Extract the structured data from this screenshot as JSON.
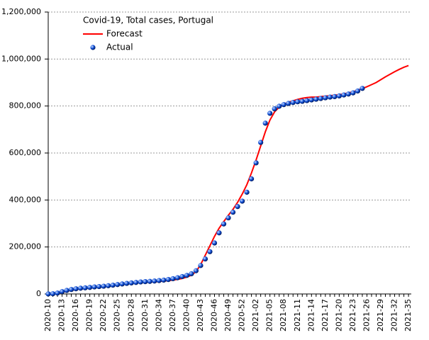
{
  "chart_data": {
    "type": "line",
    "title": "Covid-19, Total cases, Portugal",
    "categories": [
      "2020-10",
      null,
      null,
      "2020-13",
      null,
      null,
      "2020-16",
      null,
      null,
      "2020-19",
      null,
      null,
      "2020-22",
      null,
      null,
      "2020-25",
      null,
      null,
      "2020-28",
      null,
      null,
      "2020-31",
      null,
      null,
      "2020-34",
      null,
      null,
      "2020-37",
      null,
      null,
      "2020-40",
      null,
      null,
      "2020-43",
      null,
      null,
      "2020-46",
      null,
      null,
      "2020-49",
      null,
      null,
      "2020-52",
      null,
      null,
      "2021-02",
      null,
      null,
      "2021-05",
      null,
      null,
      "2021-08",
      null,
      null,
      "2021-11",
      null,
      null,
      "2021-14",
      null,
      null,
      "2021-17",
      null,
      null,
      "2021-20",
      null,
      null,
      "2021-23",
      null,
      null,
      "2021-26",
      null,
      null,
      "2021-29",
      null,
      null,
      "2021-32",
      null,
      null,
      "2021-35"
    ],
    "series": [
      {
        "name": "Forecast",
        "color": "#ff0000",
        "mark": "line",
        "values": [
          0,
          2000,
          5000,
          8000,
          12000,
          16000,
          19000,
          22000,
          24000,
          26000,
          28000,
          30000,
          32000,
          34000,
          37000,
          40000,
          43000,
          45000,
          47000,
          48000,
          49000,
          50000,
          51000,
          52000,
          53000,
          55000,
          57000,
          59000,
          62000,
          66000,
          72000,
          80000,
          95000,
          125000,
          165000,
          205000,
          245000,
          280000,
          308000,
          335000,
          360000,
          390000,
          425000,
          465000,
          515000,
          570000,
          630000,
          690000,
          740000,
          775000,
          795000,
          808000,
          816000,
          822000,
          828000,
          833000,
          836000,
          838000,
          838000,
          840000,
          842000,
          844000,
          846000,
          848000,
          852000,
          856000,
          861000,
          867000,
          874000,
          882000,
          891000,
          900000,
          912000,
          924000,
          935000,
          946000,
          956000,
          965000,
          972000
        ]
      },
      {
        "name": "Actual",
        "color": "#1050d8",
        "mark": "marker",
        "values": [
          100,
          1000,
          4000,
          10000,
          15000,
          19000,
          22000,
          24500,
          26000,
          28000,
          30000,
          31500,
          33000,
          35000,
          37500,
          40000,
          42500,
          45000,
          47000,
          49000,
          51000,
          52500,
          53500,
          55000,
          57000,
          59000,
          61500,
          65000,
          69000,
          74000,
          79000,
          86000,
          99000,
          121000,
          149000,
          180000,
          217000,
          260000,
          298000,
          324000,
          348000,
          372000,
          395000,
          433000,
          490000,
          558000,
          645000,
          727000,
          769000,
          788000,
          799000,
          806000,
          811000,
          815000,
          818000,
          820000,
          823000,
          826000,
          829000,
          832000,
          835000,
          838000,
          840000,
          843000,
          847000,
          851000,
          856000,
          864000,
          875000,
          null,
          null,
          null,
          null,
          null,
          null,
          null,
          null,
          null,
          null
        ]
      }
    ],
    "ylim": [
      0,
      1200000
    ],
    "yticks": [
      0,
      {
        "value": 200000,
        "label": "200,000"
      },
      {
        "value": 400000,
        "label": "400,000"
      },
      {
        "value": 600000,
        "label": "600,000"
      },
      {
        "value": 800000,
        "label": "800,000"
      },
      {
        "value": 1000000,
        "label": "1,000,000"
      },
      {
        "value": 1200000,
        "label": "1,200,000"
      }
    ],
    "grid": true
  }
}
